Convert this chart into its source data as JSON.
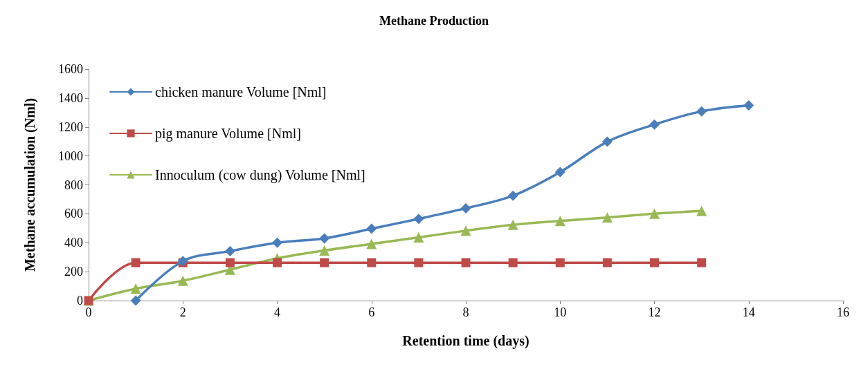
{
  "chart_data": {
    "type": "line",
    "title": "Methane Production",
    "xlabel": "Retention time (days)",
    "ylabel": "Methane accumulation (Nml)",
    "xlim": [
      0,
      16
    ],
    "xticks": [
      0,
      2,
      4,
      6,
      8,
      10,
      12,
      14,
      16
    ],
    "ylim": [
      0,
      1600
    ],
    "yticks": [
      0,
      200,
      400,
      600,
      800,
      1000,
      1200,
      1400,
      1600
    ],
    "grid": false,
    "legend": "top left",
    "line_style": "solid",
    "series": [
      {
        "name": "chicken manure Volume [Nml]",
        "color": "#4a7ebb",
        "marker": "diamond",
        "x": [
          1,
          2,
          3,
          4,
          5,
          6,
          7,
          8,
          9,
          10,
          11,
          12,
          13,
          14
        ],
        "values": [
          0,
          273,
          342,
          400,
          430,
          497,
          565,
          638,
          725,
          888,
          1098,
          1217,
          1308,
          1349
        ]
      },
      {
        "name": "pig manure Volume [Nml]",
        "color": "#be4b48",
        "marker": "square",
        "x": [
          0,
          1,
          2,
          3,
          4,
          5,
          6,
          7,
          8,
          9,
          10,
          11,
          12,
          13
        ],
        "values": [
          0,
          262,
          262,
          262,
          262,
          262,
          262,
          262,
          262,
          262,
          262,
          262,
          262,
          262
        ]
      },
      {
        "name": "Innoculum (cow dung) Volume [Nml]",
        "color": "#98b954",
        "marker": "triangle",
        "x": [
          0,
          1,
          2,
          3,
          4,
          5,
          6,
          7,
          8,
          9,
          10,
          11,
          12,
          13
        ],
        "values": [
          0,
          82,
          137,
          214,
          292,
          346,
          392,
          437,
          483,
          524,
          551,
          574,
          601,
          620
        ]
      }
    ]
  }
}
